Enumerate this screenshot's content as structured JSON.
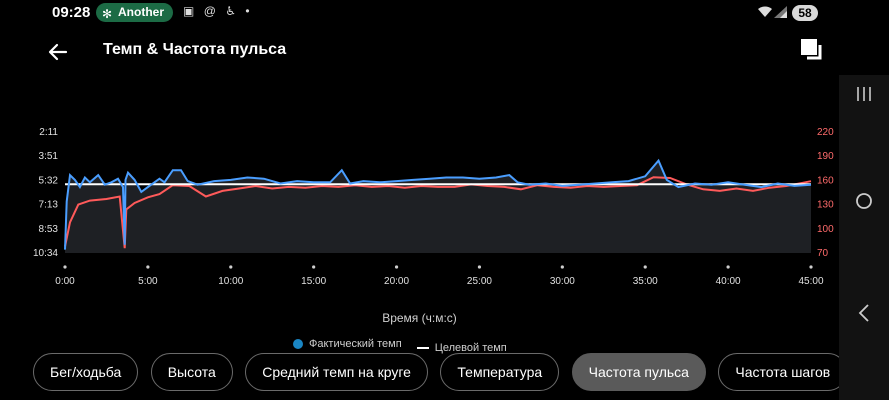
{
  "status": {
    "time": "09:28",
    "notification": "Another",
    "icons": [
      "screen-record-icon",
      "at-icon",
      "accessibility-icon",
      "dot-icon"
    ],
    "battery": "58"
  },
  "header": {
    "title": "Темп & Частота пульса"
  },
  "chart_data": {
    "type": "line",
    "xlabel": "Время (ч:м:с)",
    "x_ticks": [
      "0:00",
      "5:00",
      "10:00",
      "15:00",
      "20:00",
      "25:00",
      "30:00",
      "35:00",
      "40:00",
      "45:00"
    ],
    "y_left_ticks": [
      "2:11",
      "3:51",
      "5:32",
      "7:13",
      "8:53",
      "10:34"
    ],
    "y_right_ticks": [
      "220",
      "190",
      "160",
      "130",
      "100",
      "70"
    ],
    "y_left_range_seconds": [
      131,
      634
    ],
    "y_right_range": [
      70,
      220
    ],
    "series": [
      {
        "name": "Фактический темп",
        "color": "#4a9eff",
        "axis": "left",
        "points": [
          [
            0,
            620
          ],
          [
            0.1,
            420
          ],
          [
            0.3,
            310
          ],
          [
            0.6,
            330
          ],
          [
            0.9,
            360
          ],
          [
            1.2,
            320
          ],
          [
            1.5,
            340
          ],
          [
            2.0,
            310
          ],
          [
            2.4,
            350
          ],
          [
            2.8,
            340
          ],
          [
            3.2,
            325
          ],
          [
            3.5,
            360
          ],
          [
            3.6,
            600
          ],
          [
            3.65,
            330
          ],
          [
            3.8,
            300
          ],
          [
            4.2,
            330
          ],
          [
            4.6,
            380
          ],
          [
            5.0,
            360
          ],
          [
            5.4,
            340
          ],
          [
            5.7,
            325
          ],
          [
            6.0,
            340
          ],
          [
            6.5,
            290
          ],
          [
            7.0,
            290
          ],
          [
            7.4,
            335
          ],
          [
            8.0,
            350
          ],
          [
            9.0,
            335
          ],
          [
            10.0,
            330
          ],
          [
            11.0,
            320
          ],
          [
            12.0,
            325
          ],
          [
            13.0,
            345
          ],
          [
            14.0,
            335
          ],
          [
            15.0,
            340
          ],
          [
            16.0,
            340
          ],
          [
            16.7,
            290
          ],
          [
            17.2,
            345
          ],
          [
            18.0,
            335
          ],
          [
            19.0,
            340
          ],
          [
            20.0,
            335
          ],
          [
            21.0,
            330
          ],
          [
            22.0,
            325
          ],
          [
            23.0,
            320
          ],
          [
            24.0,
            320
          ],
          [
            25.0,
            325
          ],
          [
            26.0,
            320
          ],
          [
            26.8,
            310
          ],
          [
            27.3,
            340
          ],
          [
            28.0,
            350
          ],
          [
            29.0,
            345
          ],
          [
            30.0,
            355
          ],
          [
            31.0,
            350
          ],
          [
            32.0,
            345
          ],
          [
            33.0,
            340
          ],
          [
            34.0,
            335
          ],
          [
            35.0,
            315
          ],
          [
            35.8,
            250
          ],
          [
            36.3,
            330
          ],
          [
            37.0,
            360
          ],
          [
            38.0,
            345
          ],
          [
            39.0,
            350
          ],
          [
            40.0,
            340
          ],
          [
            41.0,
            350
          ],
          [
            42.0,
            360
          ],
          [
            43.0,
            345
          ],
          [
            44.0,
            355
          ],
          [
            45.0,
            350
          ]
        ]
      },
      {
        "name": "Целевой темп",
        "color": "#ffffff",
        "axis": "left",
        "points": [
          [
            0,
            348
          ],
          [
            45,
            348
          ]
        ]
      },
      {
        "name": "Частота пульса",
        "color": "#ff5a5a",
        "axis": "right",
        "points": [
          [
            0,
            78
          ],
          [
            0.3,
            108
          ],
          [
            0.8,
            130
          ],
          [
            1.5,
            135
          ],
          [
            2.5,
            137
          ],
          [
            3.3,
            140
          ],
          [
            3.6,
            76
          ],
          [
            3.7,
            124
          ],
          [
            4.2,
            132
          ],
          [
            5.0,
            139
          ],
          [
            5.7,
            143
          ],
          [
            6.5,
            154
          ],
          [
            7.5,
            153
          ],
          [
            8.5,
            140
          ],
          [
            9.5,
            147
          ],
          [
            10.5,
            150
          ],
          [
            11.5,
            153
          ],
          [
            12.5,
            150
          ],
          [
            13.5,
            152
          ],
          [
            14.5,
            151
          ],
          [
            15.5,
            153
          ],
          [
            16.5,
            152
          ],
          [
            17.5,
            154
          ],
          [
            18.5,
            152
          ],
          [
            19.5,
            153
          ],
          [
            20.5,
            151
          ],
          [
            21.5,
            153
          ],
          [
            22.5,
            152
          ],
          [
            23.5,
            152
          ],
          [
            24.5,
            155
          ],
          [
            25.5,
            153
          ],
          [
            26.5,
            152
          ],
          [
            27.5,
            149
          ],
          [
            28.5,
            154
          ],
          [
            29.5,
            152
          ],
          [
            30.5,
            151
          ],
          [
            31.5,
            153
          ],
          [
            32.5,
            152
          ],
          [
            33.5,
            153
          ],
          [
            34.5,
            154
          ],
          [
            35.5,
            164
          ],
          [
            36.5,
            163
          ],
          [
            37.5,
            155
          ],
          [
            38.5,
            149
          ],
          [
            39.5,
            147
          ],
          [
            40.5,
            150
          ],
          [
            41.5,
            147
          ],
          [
            42.5,
            151
          ],
          [
            43.5,
            153
          ],
          [
            44.5,
            157
          ],
          [
            45,
            159
          ]
        ]
      }
    ]
  },
  "legend": {
    "actual_pace": "Фактический темп",
    "target_pace": "Целевой темп"
  },
  "tabs": [
    {
      "label": "Бег/ходьба",
      "active": false
    },
    {
      "label": "Высота",
      "active": false
    },
    {
      "label": "Средний темп на круге",
      "active": false
    },
    {
      "label": "Температура",
      "active": false
    },
    {
      "label": "Частота пульса",
      "active": true
    },
    {
      "label": "Частота шагов",
      "active": false
    }
  ]
}
